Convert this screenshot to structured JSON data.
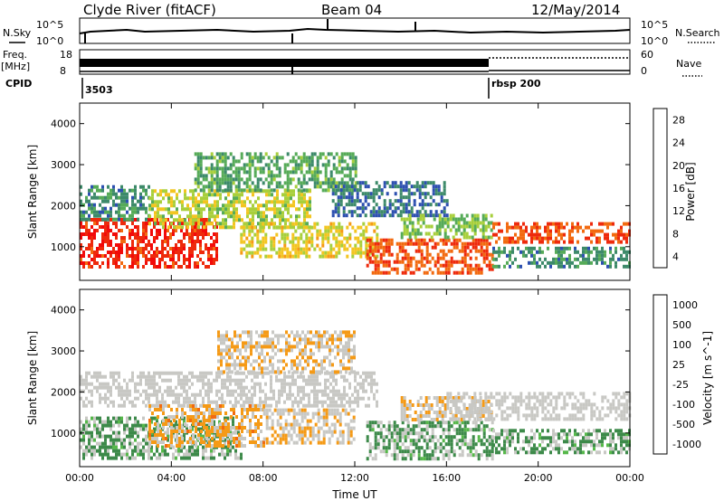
{
  "header": {
    "station": "Clyde River (fitACF)",
    "beam": "Beam 04",
    "date": "12/May/2014"
  },
  "strip_panels": {
    "nsky_label": "N.Sky",
    "nsky_ticks": [
      "10^5",
      "10^0"
    ],
    "nsearch_label": "N.Search",
    "nsearch_ticks": [
      "10^5",
      "10^0"
    ],
    "freq_label_line1": "Freq.",
    "freq_label_line2": "[MHz]",
    "freq_ticks": [
      "18",
      "8"
    ],
    "nave_label": "Nave",
    "nave_ticks": [
      "60",
      "0"
    ],
    "cpid_label": "CPID",
    "cpid_values": [
      "3503",
      "rbsp 200"
    ]
  },
  "colors": {
    "power": [
      "#1e22ff",
      "#2d50b0",
      "#3d8a6a",
      "#56ab58",
      "#a8cf3c",
      "#f3c520",
      "#f59a16",
      "#f26a10",
      "#ee2a0c",
      "#f20a0a"
    ],
    "velocity": [
      "#f20a0a",
      "#ee2a0c",
      "#f26a10",
      "#f59a16",
      "#c8c8c4",
      "#c8c8c4",
      "#3d8a4a",
      "#56b84a",
      "#2d50b0",
      "#1e22ff"
    ]
  },
  "chart_data": [
    {
      "type": "heatmap",
      "title": "",
      "xlabel": "Time UT",
      "ylabel": "Slant Range [km]",
      "x_ticks": [
        "00:00",
        "04:00",
        "08:00",
        "12:00",
        "16:00",
        "20:00",
        "00:00"
      ],
      "y_ticks": [
        "1000",
        "2000",
        "3000",
        "4000"
      ],
      "xlim_hours": [
        0,
        24
      ],
      "ylim_km": [
        180,
        4500
      ],
      "colorbar": {
        "label": "Power [dB]",
        "ticks": [
          "28",
          "24",
          "20",
          "16",
          "12",
          "8",
          "4"
        ],
        "range": [
          0,
          30
        ]
      },
      "echo_regions": [
        {
          "t0": 0.0,
          "t1": 6.0,
          "r0": 500,
          "r1": 1700,
          "level": 26
        },
        {
          "t0": 0.0,
          "t1": 3.0,
          "r0": 1700,
          "r1": 2500,
          "level": 8
        },
        {
          "t0": 3.0,
          "t1": 10.0,
          "r0": 1500,
          "r1": 2400,
          "level": 14
        },
        {
          "t0": 5.0,
          "t1": 12.0,
          "r0": 2400,
          "r1": 3300,
          "level": 10
        },
        {
          "t0": 7.0,
          "t1": 13.0,
          "r0": 800,
          "r1": 1600,
          "level": 16
        },
        {
          "t0": 11.0,
          "t1": 16.0,
          "r0": 1800,
          "r1": 2600,
          "level": 6
        },
        {
          "t0": 12.5,
          "t1": 18.0,
          "r0": 400,
          "r1": 1200,
          "level": 24
        },
        {
          "t0": 14.0,
          "t1": 18.0,
          "r0": 1200,
          "r1": 1800,
          "level": 12
        },
        {
          "t0": 18.0,
          "t1": 24.0,
          "r0": 1100,
          "r1": 1600,
          "level": 24
        },
        {
          "t0": 18.0,
          "t1": 24.0,
          "r0": 500,
          "r1": 1000,
          "level": 8
        }
      ]
    },
    {
      "type": "heatmap",
      "title": "",
      "xlabel": "Time UT",
      "ylabel": "Slant Range [km]",
      "x_ticks": [
        "00:00",
        "04:00",
        "08:00",
        "12:00",
        "16:00",
        "20:00",
        "00:00"
      ],
      "y_ticks": [
        "1000",
        "2000",
        "3000",
        "4000"
      ],
      "xlim_hours": [
        0,
        24
      ],
      "ylim_km": [
        180,
        4500
      ],
      "colorbar": {
        "label": "Velocity [m s^-1]",
        "ticks": [
          "1000",
          "500",
          "100",
          "25",
          "-25",
          "-100",
          "-500",
          "-1000"
        ],
        "range": [
          -1200,
          1200
        ]
      },
      "echo_regions": [
        {
          "t0": 0.0,
          "t1": 7.0,
          "r0": 400,
          "r1": 1400,
          "level": 300
        },
        {
          "t0": 0.0,
          "t1": 13.0,
          "r0": 1700,
          "r1": 2500,
          "level": 0
        },
        {
          "t0": 3.0,
          "t1": 8.0,
          "r0": 700,
          "r1": 1700,
          "level": -300
        },
        {
          "t0": 6.0,
          "t1": 12.0,
          "r0": 2500,
          "r1": 3500,
          "level": -200
        },
        {
          "t0": 8.0,
          "t1": 12.0,
          "r0": 800,
          "r1": 1600,
          "level": -150
        },
        {
          "t0": 12.5,
          "t1": 18.0,
          "r0": 400,
          "r1": 1300,
          "level": 300
        },
        {
          "t0": 14.0,
          "t1": 18.0,
          "r0": 1300,
          "r1": 1900,
          "level": -150
        },
        {
          "t0": 16.0,
          "t1": 24.0,
          "r0": 1300,
          "r1": 2000,
          "level": 0
        },
        {
          "t0": 18.0,
          "t1": 24.0,
          "r0": 500,
          "r1": 1100,
          "level": 300
        }
      ]
    }
  ]
}
